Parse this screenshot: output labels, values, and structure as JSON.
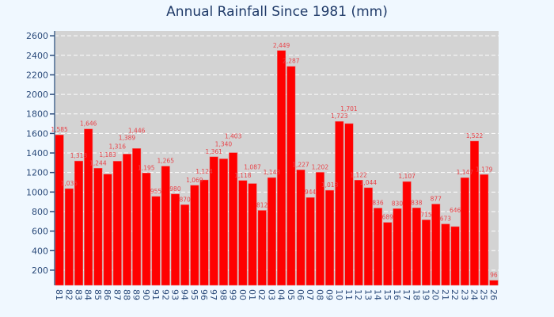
{
  "chart_data": {
    "type": "bar",
    "title": "Annual Rainfall Since 1981 (mm)",
    "xlabel": "",
    "ylabel": "",
    "categories": [
      "81",
      "82",
      "83",
      "84",
      "85",
      "86",
      "87",
      "88",
      "89",
      "90",
      "91",
      "92",
      "93",
      "94",
      "95",
      "96",
      "97",
      "98",
      "99",
      "00",
      "01",
      "02",
      "03",
      "04",
      "05",
      "06",
      "07",
      "08",
      "09",
      "10",
      "11",
      "12",
      "13",
      "14",
      "15",
      "16",
      "17",
      "18",
      "19",
      "20",
      "21",
      "22",
      "23",
      "24",
      "25",
      "26"
    ],
    "values": [
      1585,
      1035,
      1318,
      1646,
      1244,
      1183,
      1316,
      1389,
      1446,
      1195,
      955,
      1265,
      980,
      870,
      1069,
      1124,
      1361,
      1340,
      1403,
      1118,
      1087,
      812,
      1148,
      2449,
      2287,
      1227,
      944,
      1202,
      1018,
      1723,
      1701,
      1122,
      1044,
      836,
      689,
      830,
      1107,
      838,
      715,
      877,
      673,
      646,
      1147,
      1522,
      1179,
      96
    ],
    "data_labels": [
      "1,585",
      "1,035",
      "1,318",
      "1,646",
      "1,244",
      "1,183",
      "1,316",
      "1,389",
      "1,446",
      "1,195",
      "955",
      "1,265",
      "980",
      "870",
      "1,069",
      "1,124",
      "1,361",
      "1,340",
      "1,403",
      "1,118",
      "1,087",
      "812",
      "1,148",
      "2,449",
      "2,287",
      "1,227",
      "944",
      "1,202",
      "1,018",
      "1,723",
      "1,701",
      "1,122",
      "1,044",
      "836",
      "689",
      "830",
      "1,107",
      "838",
      "715",
      "877",
      "673",
      "646",
      "1,147",
      "1,522",
      "1,179",
      "96"
    ],
    "ylim": [
      45,
      2650
    ],
    "yticks": [
      200,
      400,
      600,
      800,
      1000,
      1200,
      1400,
      1600,
      1800,
      2000,
      2200,
      2400,
      2600
    ],
    "grid": "horizontal dashed",
    "legend": "none",
    "colors": {
      "bar": "#ff0000",
      "plot_bg": "#d3d3d3",
      "paper_bg": "#f0f8ff",
      "label": "#e8444a",
      "axis": "#2a4a7a"
    }
  }
}
